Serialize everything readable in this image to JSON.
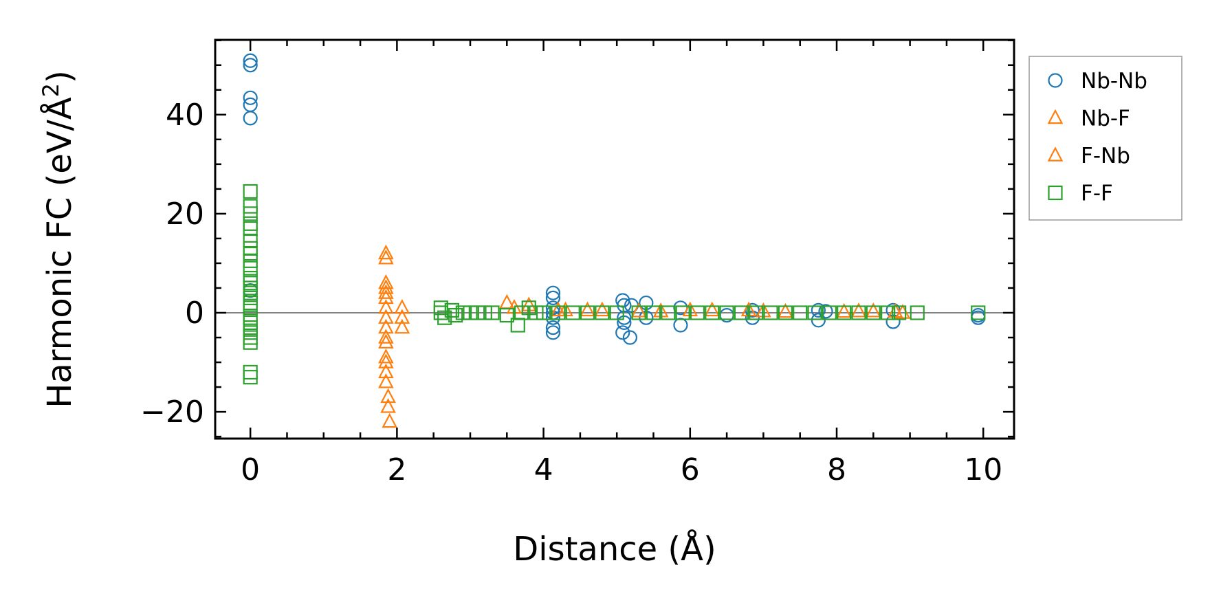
{
  "chart_data": {
    "type": "scatter",
    "title": "",
    "xlabel": "Distance (Å)",
    "ylabel_main": "Harmonic FC (eV/Å",
    "ylabel_sup": "2",
    "ylabel_close": ")",
    "xlim": [
      -0.48,
      10.42
    ],
    "ylim": [
      -25.4,
      55.1
    ],
    "xticks": [
      0,
      2,
      4,
      6,
      8,
      10
    ],
    "xtick_labels": [
      "0",
      "2",
      "4",
      "6",
      "8",
      "10"
    ],
    "yticks": [
      -20,
      0,
      20,
      40
    ],
    "ytick_labels": [
      "−20",
      "0",
      "20",
      "40"
    ],
    "x_minor_step": 0.5,
    "y_minor_step": 5,
    "zero_line": true,
    "grid": false,
    "legend_position": "outside-right-top",
    "series": [
      {
        "name": "Nb-Nb",
        "marker": "circle",
        "color": "#1f77b4",
        "points": [
          [
            0,
            50.9
          ],
          [
            0,
            50.0
          ],
          [
            0,
            43.4
          ],
          [
            0,
            42.0
          ],
          [
            0,
            39.3
          ],
          [
            0,
            4.5
          ],
          [
            4.13,
            4.0
          ],
          [
            4.13,
            3.0
          ],
          [
            4.13,
            1.0
          ],
          [
            4.13,
            0
          ],
          [
            4.13,
            -1.0
          ],
          [
            4.13,
            -3.0
          ],
          [
            4.13,
            -4.0
          ],
          [
            5.08,
            2.5
          ],
          [
            5.1,
            1.5
          ],
          [
            5.1,
            -1.0
          ],
          [
            5.1,
            -2.0
          ],
          [
            5.08,
            -4.0
          ],
          [
            5.18,
            -5.0
          ],
          [
            5.2,
            1.5
          ],
          [
            5.4,
            2.0
          ],
          [
            5.4,
            -1.0
          ],
          [
            5.87,
            1.0
          ],
          [
            5.87,
            -2.5
          ],
          [
            6.5,
            -0.5
          ],
          [
            6.85,
            0.5
          ],
          [
            6.85,
            -1.0
          ],
          [
            7.75,
            0.5
          ],
          [
            7.75,
            -1.5
          ],
          [
            7.85,
            0.3
          ],
          [
            8.77,
            -1.8
          ],
          [
            8.77,
            0.5
          ],
          [
            9.93,
            -0.5
          ],
          [
            9.93,
            -1.0
          ]
        ]
      },
      {
        "name": "Nb-F",
        "marker": "triangle",
        "color": "#ff7f0e",
        "points": [
          [
            1.85,
            12.0
          ],
          [
            1.85,
            6.0
          ],
          [
            1.85,
            4.0
          ],
          [
            1.85,
            1.0
          ],
          [
            1.85,
            -3.0
          ],
          [
            1.85,
            -6.0
          ],
          [
            1.85,
            -10.0
          ],
          [
            1.85,
            -14.0
          ],
          [
            1.88,
            -19.0
          ],
          [
            2.07,
            1.0
          ],
          [
            2.07,
            -3.0
          ],
          [
            3.5,
            2.0
          ],
          [
            3.8,
            1.5
          ],
          [
            4.3,
            0.5
          ],
          [
            4.8,
            0.5
          ],
          [
            5.3,
            0.3
          ],
          [
            6.0,
            0.5
          ],
          [
            6.8,
            0.5
          ],
          [
            7.3,
            0.2
          ],
          [
            8.3,
            0.3
          ],
          [
            8.8,
            0.2
          ]
        ]
      },
      {
        "name": "F-Nb",
        "marker": "triangle",
        "color": "#ff7f0e",
        "points": [
          [
            1.85,
            11.0
          ],
          [
            1.85,
            5.0
          ],
          [
            1.85,
            3.0
          ],
          [
            1.85,
            -1.0
          ],
          [
            1.85,
            -5.0
          ],
          [
            1.85,
            -9.0
          ],
          [
            1.85,
            -12.0
          ],
          [
            1.88,
            -17.0
          ],
          [
            1.9,
            -22.0
          ],
          [
            2.07,
            -1.0
          ],
          [
            3.6,
            1.0
          ],
          [
            4.2,
            0.5
          ],
          [
            4.6,
            0.5
          ],
          [
            5.6,
            0.3
          ],
          [
            6.3,
            0.5
          ],
          [
            7.0,
            0.3
          ],
          [
            8.1,
            0.2
          ],
          [
            8.5,
            0.3
          ],
          [
            8.9,
            0.0
          ]
        ]
      },
      {
        "name": "F-F",
        "marker": "square",
        "color": "#2ca02c",
        "points": [
          [
            0,
            24.5
          ],
          [
            0,
            21.5
          ],
          [
            0,
            20.0
          ],
          [
            0,
            18.0
          ],
          [
            0,
            17.0
          ],
          [
            0,
            14.5
          ],
          [
            0,
            13.0
          ],
          [
            0,
            12.0
          ],
          [
            0,
            10.5
          ],
          [
            0,
            9.0
          ],
          [
            0,
            7.0
          ],
          [
            0,
            6.0
          ],
          [
            0,
            5.0
          ],
          [
            0,
            4.0
          ],
          [
            0,
            3.0
          ],
          [
            0,
            2.0
          ],
          [
            0,
            1.0
          ],
          [
            0,
            -1.0
          ],
          [
            0,
            -2.0
          ],
          [
            0,
            -3.0
          ],
          [
            0,
            -4.0
          ],
          [
            0,
            -5.0
          ],
          [
            0,
            -6.0
          ],
          [
            0,
            -12.0
          ],
          [
            0,
            -13.0
          ],
          [
            2.6,
            1.0
          ],
          [
            2.6,
            0
          ],
          [
            2.65,
            -1.0
          ],
          [
            2.75,
            0.5
          ],
          [
            2.8,
            -0.5
          ],
          [
            2.9,
            0
          ],
          [
            3.0,
            0
          ],
          [
            3.1,
            0
          ],
          [
            3.2,
            0
          ],
          [
            3.3,
            0
          ],
          [
            3.5,
            -0.5
          ],
          [
            3.65,
            -2.5
          ],
          [
            3.7,
            0
          ],
          [
            3.8,
            1.0
          ],
          [
            3.9,
            0
          ],
          [
            4.0,
            0
          ],
          [
            4.2,
            0
          ],
          [
            4.4,
            0
          ],
          [
            4.6,
            0
          ],
          [
            4.8,
            0
          ],
          [
            5.0,
            0
          ],
          [
            5.3,
            0
          ],
          [
            5.5,
            0
          ],
          [
            5.7,
            0
          ],
          [
            5.9,
            0
          ],
          [
            6.1,
            0
          ],
          [
            6.3,
            0
          ],
          [
            6.5,
            0
          ],
          [
            6.7,
            0
          ],
          [
            6.9,
            0
          ],
          [
            7.1,
            0
          ],
          [
            7.3,
            0
          ],
          [
            7.5,
            0
          ],
          [
            7.7,
            0
          ],
          [
            7.9,
            0
          ],
          [
            8.1,
            0
          ],
          [
            8.3,
            0
          ],
          [
            8.5,
            0
          ],
          [
            8.7,
            0
          ],
          [
            8.85,
            0
          ],
          [
            9.1,
            0
          ],
          [
            9.93,
            0
          ]
        ]
      }
    ]
  }
}
